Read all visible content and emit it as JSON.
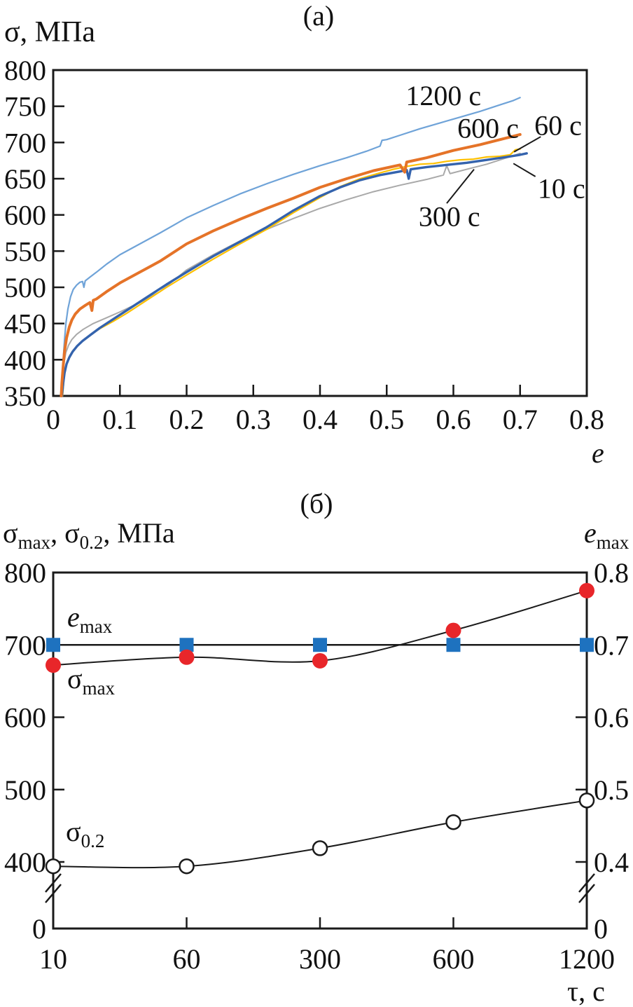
{
  "figure": {
    "background": "#ffffff",
    "axis_color": "#1a1a1a"
  },
  "chart_data": [
    {
      "id": "a",
      "type": "line",
      "title": "(а)",
      "ylabel": "σ, МПа",
      "xlabel": "e",
      "xlim": [
        0,
        0.8
      ],
      "ylim": [
        350,
        800
      ],
      "xticks": [
        "0",
        "0.1",
        "0.2",
        "0.3",
        "0.4",
        "0.5",
        "0.6",
        "0.7",
        "0.8"
      ],
      "yticks": [
        800,
        750,
        700,
        650,
        600,
        550,
        500,
        450,
        400,
        350
      ],
      "grid": false,
      "legend_position": "inline-annotations",
      "series": [
        {
          "name": "1200 с",
          "color": "#6fa3d8",
          "width": 2.2,
          "points": [
            [
              0.012,
              350
            ],
            [
              0.013,
              372
            ],
            [
              0.015,
              400
            ],
            [
              0.017,
              428
            ],
            [
              0.019,
              450
            ],
            [
              0.022,
              470
            ],
            [
              0.026,
              487
            ],
            [
              0.03,
              497
            ],
            [
              0.035,
              503
            ],
            [
              0.04,
              507
            ],
            [
              0.044,
              508
            ],
            [
              0.046,
              500
            ],
            [
              0.048,
              509
            ],
            [
              0.055,
              514
            ],
            [
              0.065,
              521
            ],
            [
              0.08,
              532
            ],
            [
              0.1,
              545
            ],
            [
              0.13,
              560
            ],
            [
              0.16,
              575
            ],
            [
              0.2,
              596
            ],
            [
              0.24,
              613
            ],
            [
              0.28,
              629
            ],
            [
              0.32,
              643
            ],
            [
              0.36,
              656
            ],
            [
              0.4,
              668
            ],
            [
              0.44,
              679
            ],
            [
              0.47,
              688
            ],
            [
              0.49,
              695
            ],
            [
              0.493,
              703
            ],
            [
              0.5,
              704
            ],
            [
              0.52,
              710
            ],
            [
              0.55,
              719
            ],
            [
              0.58,
              727
            ],
            [
              0.61,
              735
            ],
            [
              0.64,
              743
            ],
            [
              0.67,
              752
            ],
            [
              0.69,
              758
            ],
            [
              0.7,
              762
            ]
          ]
        },
        {
          "name": "300 с",
          "color": "#a9a9a9",
          "width": 2,
          "points": [
            [
              0.012,
              350
            ],
            [
              0.014,
              375
            ],
            [
              0.016,
              395
            ],
            [
              0.019,
              410
            ],
            [
              0.023,
              420
            ],
            [
              0.028,
              428
            ],
            [
              0.035,
              435
            ],
            [
              0.045,
              442
            ],
            [
              0.06,
              450
            ],
            [
              0.08,
              458
            ],
            [
              0.1,
              466
            ],
            [
              0.13,
              479
            ],
            [
              0.16,
              494
            ],
            [
              0.2,
              524
            ],
            [
              0.24,
              545
            ],
            [
              0.28,
              564
            ],
            [
              0.32,
              580
            ],
            [
              0.36,
              595
            ],
            [
              0.4,
              609
            ],
            [
              0.44,
              621
            ],
            [
              0.48,
              632
            ],
            [
              0.52,
              641
            ],
            [
              0.56,
              649
            ],
            [
              0.585,
              655
            ],
            [
              0.59,
              668
            ],
            [
              0.595,
              657
            ],
            [
              0.62,
              663
            ],
            [
              0.65,
              670
            ],
            [
              0.68,
              679
            ],
            [
              0.7,
              685
            ]
          ]
        },
        {
          "name": "60 с",
          "color": "#ffc000",
          "width": 2.2,
          "points": [
            [
              0.014,
              350
            ],
            [
              0.016,
              372
            ],
            [
              0.018,
              388
            ],
            [
              0.021,
              398
            ],
            [
              0.025,
              406
            ],
            [
              0.03,
              413
            ],
            [
              0.037,
              420
            ],
            [
              0.045,
              427
            ],
            [
              0.055,
              434
            ],
            [
              0.07,
              443
            ],
            [
              0.09,
              453
            ],
            [
              0.11,
              464
            ],
            [
              0.14,
              482
            ],
            [
              0.17,
              500
            ],
            [
              0.2,
              517
            ],
            [
              0.24,
              539
            ],
            [
              0.28,
              560
            ],
            [
              0.32,
              580
            ],
            [
              0.36,
              603
            ],
            [
              0.4,
              624
            ],
            [
              0.43,
              639
            ],
            [
              0.46,
              650
            ],
            [
              0.49,
              658
            ],
            [
              0.51,
              663
            ],
            [
              0.53,
              667
            ],
            [
              0.55,
              670
            ],
            [
              0.57,
              671
            ],
            [
              0.59,
              674
            ],
            [
              0.61,
              676
            ],
            [
              0.63,
              677
            ],
            [
              0.65,
              680
            ],
            [
              0.67,
              681
            ],
            [
              0.685,
              683
            ],
            [
              0.693,
              690
            ],
            [
              0.7,
              691
            ]
          ]
        },
        {
          "name": "10 с",
          "color": "#3463ad",
          "width": 3.4,
          "points": [
            [
              0.013,
              350
            ],
            [
              0.015,
              368
            ],
            [
              0.017,
              382
            ],
            [
              0.02,
              394
            ],
            [
              0.024,
              403
            ],
            [
              0.029,
              411
            ],
            [
              0.036,
              419
            ],
            [
              0.044,
              426
            ],
            [
              0.054,
              433
            ],
            [
              0.07,
              444
            ],
            [
              0.09,
              456
            ],
            [
              0.11,
              468
            ],
            [
              0.14,
              486
            ],
            [
              0.17,
              504
            ],
            [
              0.2,
              521
            ],
            [
              0.24,
              543
            ],
            [
              0.28,
              563
            ],
            [
              0.32,
              583
            ],
            [
              0.36,
              606
            ],
            [
              0.4,
              626
            ],
            [
              0.43,
              638
            ],
            [
              0.46,
              648
            ],
            [
              0.49,
              655
            ],
            [
              0.52,
              660
            ],
            [
              0.53,
              662
            ],
            [
              0.533,
              650
            ],
            [
              0.536,
              663
            ],
            [
              0.56,
              666
            ],
            [
              0.59,
              669
            ],
            [
              0.62,
              672
            ],
            [
              0.65,
              676
            ],
            [
              0.68,
              680
            ],
            [
              0.7,
              683
            ],
            [
              0.71,
              685
            ]
          ]
        },
        {
          "name": "600 с",
          "color": "#e57328",
          "width": 4,
          "points": [
            [
              0.012,
              350
            ],
            [
              0.013,
              368
            ],
            [
              0.015,
              392
            ],
            [
              0.017,
              412
            ],
            [
              0.02,
              430
            ],
            [
              0.024,
              445
            ],
            [
              0.028,
              455
            ],
            [
              0.033,
              463
            ],
            [
              0.04,
              470
            ],
            [
              0.048,
              475
            ],
            [
              0.055,
              479
            ],
            [
              0.058,
              468
            ],
            [
              0.06,
              482
            ],
            [
              0.065,
              484
            ],
            [
              0.08,
              494
            ],
            [
              0.1,
              506
            ],
            [
              0.13,
              521
            ],
            [
              0.16,
              536
            ],
            [
              0.2,
              560
            ],
            [
              0.24,
              578
            ],
            [
              0.28,
              594
            ],
            [
              0.32,
              609
            ],
            [
              0.36,
              623
            ],
            [
              0.4,
              638
            ],
            [
              0.44,
              650
            ],
            [
              0.48,
              661
            ],
            [
              0.52,
              669
            ],
            [
              0.527,
              659
            ],
            [
              0.53,
              673
            ],
            [
              0.56,
              679
            ],
            [
              0.6,
              689
            ],
            [
              0.64,
              697
            ],
            [
              0.67,
              704
            ],
            [
              0.7,
              711
            ]
          ]
        }
      ],
      "curve_labels": [
        {
          "text": "1200 с",
          "x": 0.585,
          "y": 765
        },
        {
          "text": "600 с",
          "x": 0.652,
          "y": 720
        },
        {
          "text": "60 с",
          "x": 0.757,
          "y": 724
        },
        {
          "text": "10 с",
          "x": 0.762,
          "y": 637
        },
        {
          "text": "300 с",
          "x": 0.594,
          "y": 598
        }
      ],
      "leaders": [
        {
          "x1": 0.731,
          "y1": 708,
          "x2": 0.691,
          "y2": 687
        },
        {
          "x1": 0.723,
          "y1": 653,
          "x2": 0.69,
          "y2": 671
        },
        {
          "x1": 0.59,
          "y1": 616,
          "x2": 0.631,
          "y2": 663
        }
      ]
    },
    {
      "id": "b",
      "type": "scatter-line",
      "title": "(б)",
      "ylabel_parts": {
        "p1": "σ",
        "s1": "max",
        "p2": ", σ",
        "s2": "0.2",
        "p3": ", МПа"
      },
      "right_axis_label": {
        "p1": "e",
        "s1": "max"
      },
      "xlabel": "τ, с",
      "categories": [
        "10",
        "60",
        "300",
        "600",
        "1200"
      ],
      "left_axis": {
        "ticks": [
          800,
          700,
          600,
          500,
          400,
          0
        ],
        "break_between": [
          400,
          0
        ]
      },
      "right_axis": {
        "ticks": [
          "0.8",
          "0.7",
          "0.6",
          "0.5",
          "0.4",
          "0"
        ],
        "break_between": [
          0.4,
          0
        ]
      },
      "series": [
        {
          "name": "e_max",
          "label_parts": {
            "p1": "e",
            "s1": "max"
          },
          "axis": "right",
          "values": [
            0.7,
            0.7,
            0.7,
            0.7,
            0.7
          ],
          "marker": "square",
          "marker_color": "#1e72bf",
          "line": "straight"
        },
        {
          "name": "σ_max",
          "label_parts": {
            "p1": "σ",
            "s1": "max"
          },
          "axis": "left",
          "values": [
            672,
            683,
            678,
            720,
            775
          ],
          "marker": "circle",
          "marker_color": "#e8262a",
          "line": "smooth"
        },
        {
          "name": "σ_0.2",
          "label_parts": {
            "p1": "σ",
            "s1": "0.2"
          },
          "axis": "left",
          "values": [
            394,
            394,
            419,
            455,
            485
          ],
          "marker": "open-circle",
          "marker_color": "#ffffff",
          "line": "smooth"
        }
      ]
    }
  ]
}
